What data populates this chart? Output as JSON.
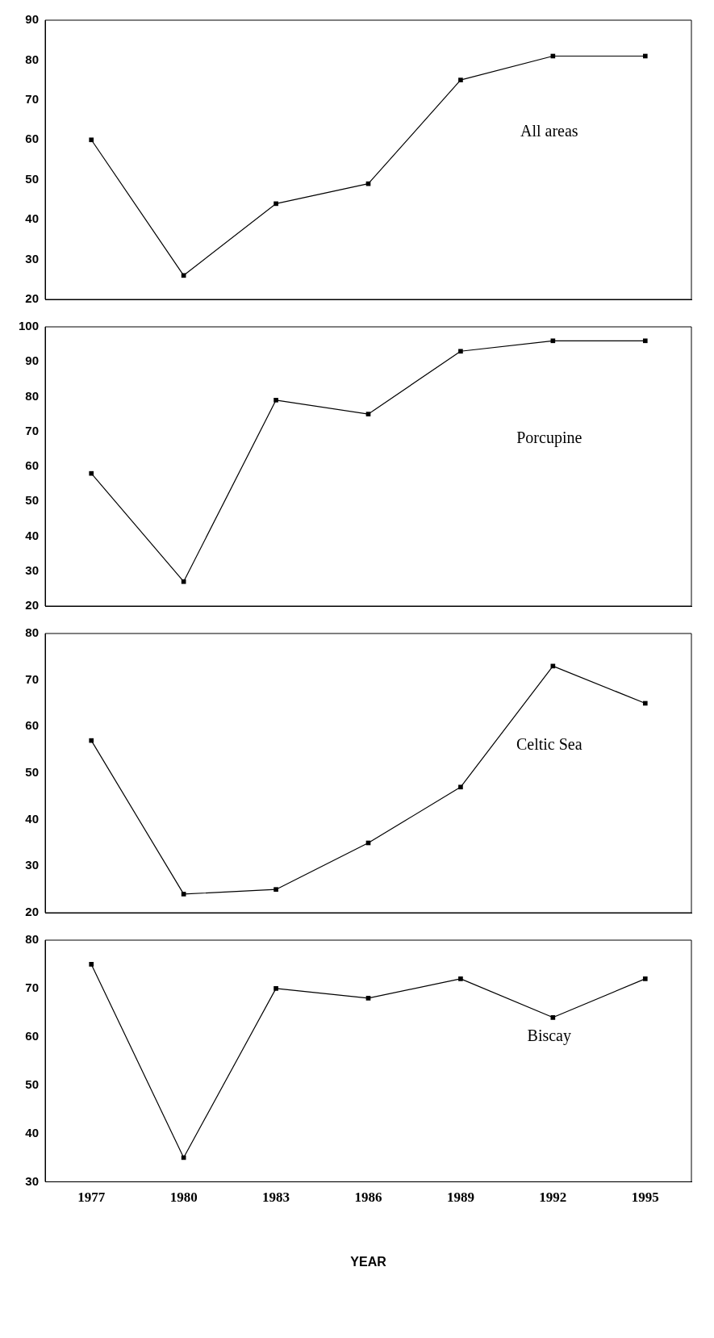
{
  "chart_data": [
    {
      "type": "line",
      "categories": [
        "1977",
        "1980",
        "1983",
        "1986",
        "1989",
        "1992",
        "1995"
      ],
      "series": [
        {
          "color": "#000000",
          "values": [
            60,
            26,
            44,
            49,
            75,
            81,
            81
          ]
        }
      ],
      "ylim": [
        20,
        90
      ],
      "yticks": [
        20,
        30,
        40,
        50,
        60,
        70,
        80,
        90
      ],
      "marker": "square",
      "line_style": "solid",
      "grid": false,
      "legend": false,
      "tick_labels": "y",
      "annotations": [
        "All areas"
      ]
    },
    {
      "type": "line",
      "categories": [
        "1977",
        "1980",
        "1983",
        "1986",
        "1989",
        "1992",
        "1995"
      ],
      "series": [
        {
          "color": "#000000",
          "values": [
            58,
            27,
            79,
            75,
            93,
            96,
            96
          ]
        }
      ],
      "ylim": [
        20,
        100
      ],
      "yticks": [
        20,
        30,
        40,
        50,
        60,
        70,
        80,
        90,
        100
      ],
      "marker": "square",
      "line_style": "solid",
      "grid": false,
      "legend": false,
      "tick_labels": "y",
      "annotations": [
        "Porcupine"
      ]
    },
    {
      "type": "line",
      "categories": [
        "1977",
        "1980",
        "1983",
        "1986",
        "1989",
        "1992",
        "1995"
      ],
      "series": [
        {
          "color": "#000000",
          "values": [
            57,
            24,
            25,
            35,
            47,
            73,
            65
          ]
        }
      ],
      "ylim": [
        20,
        80
      ],
      "yticks": [
        20,
        30,
        40,
        50,
        60,
        70,
        80
      ],
      "marker": "square",
      "line_style": "solid",
      "grid": false,
      "legend": false,
      "tick_labels": "y",
      "annotations": [
        "Celtic Sea"
      ]
    },
    {
      "type": "line",
      "categories": [
        "1977",
        "1980",
        "1983",
        "1986",
        "1989",
        "1992",
        "1995"
      ],
      "series": [
        {
          "color": "#000000",
          "values": [
            75,
            35,
            70,
            68,
            72,
            64,
            72
          ]
        }
      ],
      "ylim": [
        30,
        80
      ],
      "yticks": [
        30,
        40,
        50,
        60,
        70,
        80
      ],
      "marker": "square",
      "line_style": "solid",
      "grid": false,
      "legend": false,
      "annotations": [
        "Biscay"
      ],
      "xlabel": "YEAR"
    }
  ]
}
